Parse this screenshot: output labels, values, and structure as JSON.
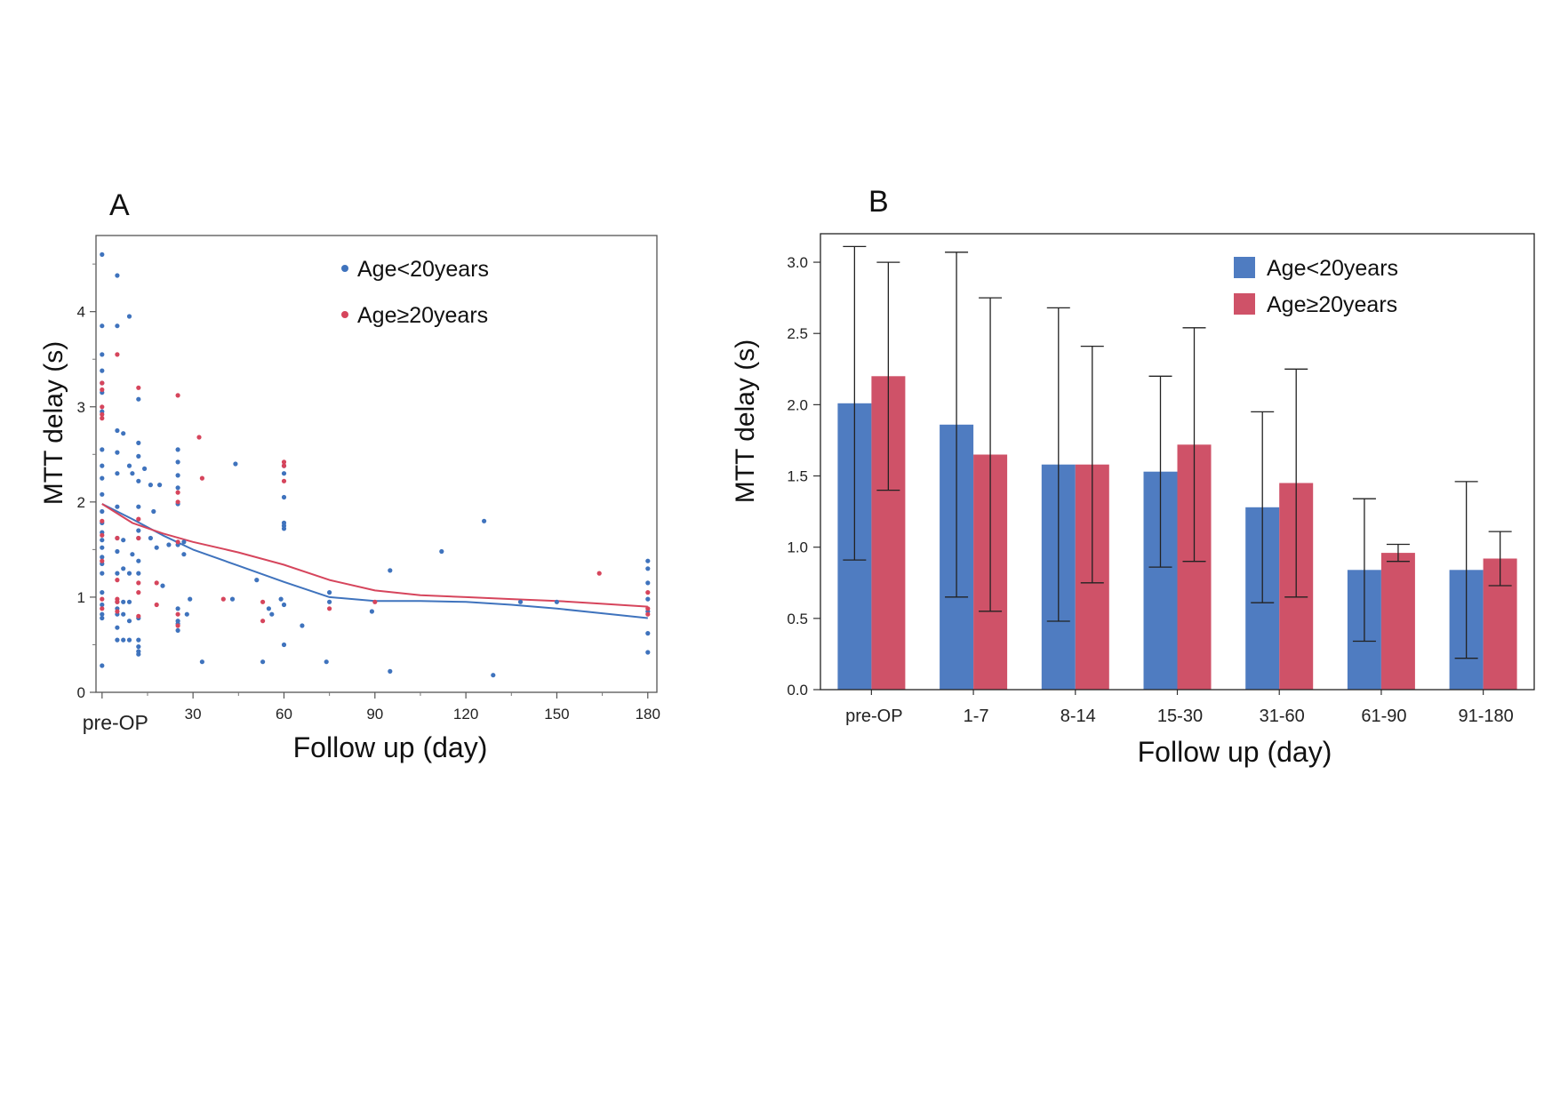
{
  "chart_data": [
    {
      "panel_label": "A",
      "type": "scatter",
      "xlabel": "Follow up (day)",
      "ylabel": "MTT delay (s)",
      "xlim": [
        -2,
        183
      ],
      "ylim": [
        0,
        4.8
      ],
      "x_ticks": [
        {
          "v": 0,
          "label": "pre-OP"
        },
        {
          "v": 30,
          "label": "30"
        },
        {
          "v": 60,
          "label": "60"
        },
        {
          "v": 90,
          "label": "90"
        },
        {
          "v": 120,
          "label": "120"
        },
        {
          "v": 150,
          "label": "150"
        },
        {
          "v": 180,
          "label": "180"
        }
      ],
      "y_ticks": [
        {
          "v": 0,
          "label": "0"
        },
        {
          "v": 1,
          "label": "1"
        },
        {
          "v": 2,
          "label": "2"
        },
        {
          "v": 3,
          "label": "3"
        },
        {
          "v": 4,
          "label": "4"
        }
      ],
      "legend_position": "top-right",
      "series": [
        {
          "name": "Age<20years",
          "color": "#3f73bd",
          "points": [
            [
              0,
              4.6
            ],
            [
              0,
              3.85
            ],
            [
              0,
              3.55
            ],
            [
              0,
              3.38
            ],
            [
              0,
              3.25
            ],
            [
              0,
              3.15
            ],
            [
              0,
              2.95
            ],
            [
              0,
              2.55
            ],
            [
              0,
              2.38
            ],
            [
              0,
              2.25
            ],
            [
              0,
              2.08
            ],
            [
              0,
              1.9
            ],
            [
              0,
              1.78
            ],
            [
              0,
              1.68
            ],
            [
              0,
              1.6
            ],
            [
              0,
              1.52
            ],
            [
              0,
              1.42
            ],
            [
              0,
              1.35
            ],
            [
              0,
              1.25
            ],
            [
              0,
              1.05
            ],
            [
              0,
              0.92
            ],
            [
              0,
              0.82
            ],
            [
              0,
              0.78
            ],
            [
              0,
              0.28
            ],
            [
              5,
              4.38
            ],
            [
              5,
              3.85
            ],
            [
              5,
              2.75
            ],
            [
              5,
              2.52
            ],
            [
              5,
              2.3
            ],
            [
              5,
              1.95
            ],
            [
              5,
              1.62
            ],
            [
              5,
              1.48
            ],
            [
              5,
              1.25
            ],
            [
              5,
              0.95
            ],
            [
              5,
              0.88
            ],
            [
              5,
              0.82
            ],
            [
              5,
              0.68
            ],
            [
              5,
              0.55
            ],
            [
              7,
              2.72
            ],
            [
              7,
              1.6
            ],
            [
              7,
              1.3
            ],
            [
              7,
              0.95
            ],
            [
              7,
              0.82
            ],
            [
              7,
              0.55
            ],
            [
              9,
              3.95
            ],
            [
              9,
              2.38
            ],
            [
              9,
              1.25
            ],
            [
              9,
              0.95
            ],
            [
              9,
              0.75
            ],
            [
              9,
              0.55
            ],
            [
              10,
              2.3
            ],
            [
              10,
              1.45
            ],
            [
              12,
              3.08
            ],
            [
              12,
              2.62
            ],
            [
              12,
              2.48
            ],
            [
              12,
              2.22
            ],
            [
              12,
              1.95
            ],
            [
              12,
              1.7
            ],
            [
              12,
              1.62
            ],
            [
              12,
              1.38
            ],
            [
              12,
              1.25
            ],
            [
              12,
              0.78
            ],
            [
              12,
              0.55
            ],
            [
              12,
              0.48
            ],
            [
              12,
              0.43
            ],
            [
              12,
              0.4
            ],
            [
              14,
              2.35
            ],
            [
              16,
              2.18
            ],
            [
              16,
              1.62
            ],
            [
              17,
              1.9
            ],
            [
              18,
              1.52
            ],
            [
              19,
              2.18
            ],
            [
              20,
              1.12
            ],
            [
              22,
              1.55
            ],
            [
              25,
              2.55
            ],
            [
              25,
              2.42
            ],
            [
              25,
              2.28
            ],
            [
              25,
              2.15
            ],
            [
              25,
              1.98
            ],
            [
              25,
              1.55
            ],
            [
              25,
              0.88
            ],
            [
              25,
              0.75
            ],
            [
              25,
              0.72
            ],
            [
              25,
              0.65
            ],
            [
              27,
              1.58
            ],
            [
              27,
              1.45
            ],
            [
              28,
              0.82
            ],
            [
              29,
              0.98
            ],
            [
              33,
              0.32
            ],
            [
              43,
              0.98
            ],
            [
              44,
              2.4
            ],
            [
              51,
              1.18
            ],
            [
              53,
              0.32
            ],
            [
              55,
              0.88
            ],
            [
              56,
              0.82
            ],
            [
              59,
              0.98
            ],
            [
              60,
              2.38
            ],
            [
              60,
              2.3
            ],
            [
              60,
              2.05
            ],
            [
              60,
              1.78
            ],
            [
              60,
              1.75
            ],
            [
              60,
              1.72
            ],
            [
              60,
              0.92
            ],
            [
              60,
              0.5
            ],
            [
              66,
              0.7
            ],
            [
              74,
              0.32
            ],
            [
              75,
              1.05
            ],
            [
              75,
              0.95
            ],
            [
              89,
              0.85
            ],
            [
              95,
              1.28
            ],
            [
              95,
              0.22
            ],
            [
              112,
              1.48
            ],
            [
              126,
              1.8
            ],
            [
              129,
              0.18
            ],
            [
              138,
              0.95
            ],
            [
              150,
              0.95
            ],
            [
              180,
              1.38
            ],
            [
              180,
              1.3
            ],
            [
              180,
              1.15
            ],
            [
              180,
              0.98
            ],
            [
              180,
              0.85
            ],
            [
              180,
              0.62
            ],
            [
              180,
              0.42
            ]
          ]
        },
        {
          "name": "Age≥20years",
          "color": "#d6455c",
          "points": [
            [
              0,
              3.25
            ],
            [
              0,
              3.18
            ],
            [
              0,
              3.0
            ],
            [
              0,
              2.92
            ],
            [
              0,
              2.88
            ],
            [
              0,
              1.8
            ],
            [
              0,
              1.65
            ],
            [
              0,
              1.38
            ],
            [
              0,
              0.98
            ],
            [
              0,
              0.88
            ],
            [
              5,
              3.55
            ],
            [
              5,
              1.62
            ],
            [
              5,
              1.18
            ],
            [
              5,
              0.98
            ],
            [
              5,
              0.95
            ],
            [
              5,
              0.85
            ],
            [
              12,
              3.2
            ],
            [
              12,
              1.82
            ],
            [
              12,
              1.62
            ],
            [
              12,
              1.15
            ],
            [
              12,
              1.05
            ],
            [
              12,
              0.8
            ],
            [
              18,
              1.15
            ],
            [
              18,
              0.92
            ],
            [
              25,
              3.12
            ],
            [
              25,
              2.1
            ],
            [
              25,
              2.0
            ],
            [
              25,
              1.58
            ],
            [
              25,
              0.82
            ],
            [
              25,
              0.7
            ],
            [
              32,
              2.68
            ],
            [
              33,
              2.25
            ],
            [
              40,
              0.98
            ],
            [
              53,
              0.95
            ],
            [
              53,
              0.75
            ],
            [
              60,
              2.42
            ],
            [
              60,
              2.38
            ],
            [
              60,
              2.22
            ],
            [
              75,
              0.88
            ],
            [
              90,
              0.95
            ],
            [
              164,
              1.25
            ],
            [
              180,
              1.05
            ],
            [
              180,
              0.88
            ],
            [
              180,
              0.82
            ]
          ]
        }
      ],
      "trend_lines": [
        {
          "name": "Age<20years",
          "color": "#3f73bd",
          "points": [
            [
              0,
              1.98
            ],
            [
              10,
              1.82
            ],
            [
              20,
              1.65
            ],
            [
              30,
              1.5
            ],
            [
              45,
              1.33
            ],
            [
              60,
              1.16
            ],
            [
              75,
              1.0
            ],
            [
              90,
              0.96
            ],
            [
              105,
              0.96
            ],
            [
              120,
              0.95
            ],
            [
              135,
              0.92
            ],
            [
              150,
              0.88
            ],
            [
              165,
              0.83
            ],
            [
              180,
              0.78
            ]
          ]
        },
        {
          "name": "Age≥20years",
          "color": "#d6455c",
          "points": [
            [
              0,
              1.98
            ],
            [
              10,
              1.78
            ],
            [
              20,
              1.67
            ],
            [
              30,
              1.58
            ],
            [
              45,
              1.47
            ],
            [
              60,
              1.34
            ],
            [
              75,
              1.18
            ],
            [
              90,
              1.07
            ],
            [
              105,
              1.02
            ],
            [
              120,
              1.0
            ],
            [
              135,
              0.98
            ],
            [
              150,
              0.96
            ],
            [
              165,
              0.93
            ],
            [
              180,
              0.9
            ]
          ]
        }
      ]
    },
    {
      "panel_label": "B",
      "type": "bar",
      "xlabel": "Follow up (day)",
      "ylabel": "MTT delay (s)",
      "ylim": [
        0,
        3.2
      ],
      "y_ticks": [
        {
          "v": 0,
          "label": "0.0"
        },
        {
          "v": 0.5,
          "label": "0.5"
        },
        {
          "v": 1.0,
          "label": "1.0"
        },
        {
          "v": 1.5,
          "label": "1.5"
        },
        {
          "v": 2.0,
          "label": "2.0"
        },
        {
          "v": 2.5,
          "label": "2.5"
        },
        {
          "v": 3.0,
          "label": "3.0"
        }
      ],
      "categories": [
        "pre-OP",
        "1-7",
        "8-14",
        "15-30",
        "31-60",
        "61-90",
        "91-180"
      ],
      "legend_position": "top-right",
      "series": [
        {
          "name": "Age<20years",
          "color": "#4f7cc1",
          "values": [
            2.01,
            1.86,
            1.58,
            1.53,
            1.28,
            0.84,
            0.84
          ],
          "error": [
            1.1,
            1.21,
            1.1,
            0.67,
            0.67,
            0.5,
            0.62
          ]
        },
        {
          "name": "Age≥20years",
          "color": "#cf5268",
          "values": [
            2.2,
            1.65,
            1.58,
            1.72,
            1.45,
            0.96,
            0.92
          ],
          "error": [
            0.8,
            1.1,
            0.83,
            0.82,
            0.8,
            0.06,
            0.19
          ]
        }
      ]
    }
  ]
}
